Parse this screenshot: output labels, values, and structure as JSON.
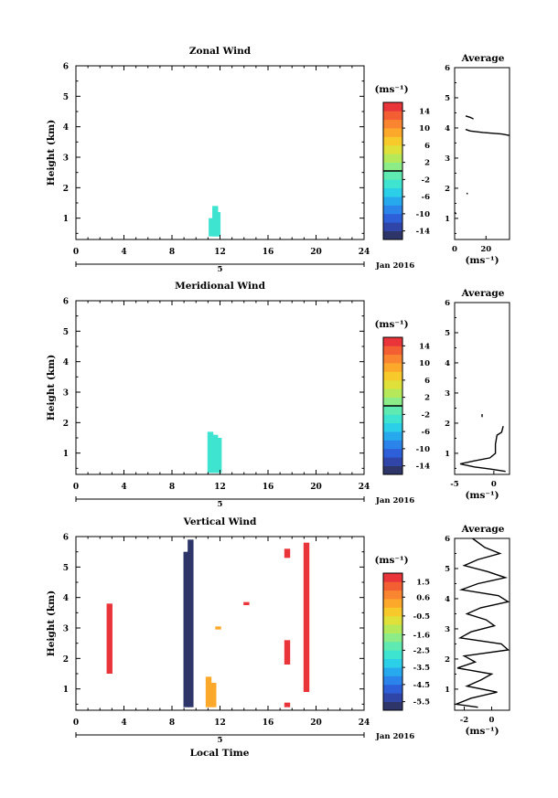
{
  "x_axis": {
    "label": "Local Time",
    "ticks": [
      0,
      4,
      8,
      12,
      16,
      20,
      24
    ],
    "date_day": "5",
    "date_month": "Jan 2016"
  },
  "y_axis": {
    "label": "Height (km)",
    "ticks": [
      1,
      2,
      3,
      4,
      5,
      6
    ]
  },
  "unit": "(ms⁻¹)",
  "panels_text": [
    {
      "title": "Zonal Wind",
      "avg_title": "Average",
      "cb_ticks": [
        "14",
        "10",
        "6",
        "2",
        "-2",
        "-6",
        "-10",
        "-14"
      ],
      "avg_xticks": [
        "0",
        "20"
      ]
    },
    {
      "title": "Meridional Wind",
      "avg_title": "Average",
      "cb_ticks": [
        "14",
        "10",
        "6",
        "2",
        "-2",
        "-6",
        "-10",
        "-14"
      ],
      "avg_xticks": [
        "-5",
        "0"
      ]
    },
    {
      "title": "Vertical Wind",
      "avg_title": "Average",
      "cb_ticks": [
        "1.5",
        "0.6",
        "-0.5",
        "-1.6",
        "-2.5",
        "-3.5",
        "-4.5",
        "-5.5"
      ],
      "avg_xticks": [
        "-2",
        "0"
      ]
    }
  ],
  "chart_data": [
    {
      "type": "heatmap",
      "title": "Zonal Wind",
      "xlabel": "",
      "ylabel": "Height (km)",
      "xlim": [
        0,
        24
      ],
      "ylim": [
        0.3,
        6
      ],
      "colorbar": {
        "label": "(ms⁻¹)",
        "range": [
          -16,
          16
        ],
        "ticks": [
          14,
          10,
          6,
          2,
          -2,
          -6,
          -10,
          -14
        ]
      },
      "cells": [
        {
          "t": 11.3,
          "h_from": 0.4,
          "h_to": 1.0,
          "value": -2.5
        },
        {
          "t": 11.6,
          "h_from": 0.4,
          "h_to": 1.4,
          "value": -2.5
        },
        {
          "t": 11.8,
          "h_from": 0.4,
          "h_to": 1.2,
          "value": -3.0
        }
      ],
      "average_profile": {
        "title": "Average",
        "xlabel": "(ms⁻¹)",
        "xlim": [
          0,
          35
        ],
        "ylim": [
          0.3,
          6
        ],
        "segments": [
          [
            [
              0,
              1.2
            ],
            [
              1,
              1.15
            ]
          ],
          [
            [
              8,
              1.8
            ],
            [
              8,
              1.85
            ]
          ],
          [
            [
              7,
              4.4
            ],
            [
              10,
              4.35
            ],
            [
              12,
              4.3
            ]
          ],
          [
            [
              7,
              3.95
            ],
            [
              10,
              3.9
            ],
            [
              18,
              3.85
            ],
            [
              30,
              3.8
            ],
            [
              35,
              3.75
            ]
          ]
        ]
      }
    },
    {
      "type": "heatmap",
      "title": "Meridional Wind",
      "xlabel": "",
      "ylabel": "Height (km)",
      "xlim": [
        0,
        24
      ],
      "ylim": [
        0.3,
        6
      ],
      "colorbar": {
        "label": "(ms⁻¹)",
        "range": [
          -16,
          16
        ],
        "ticks": [
          14,
          10,
          6,
          2,
          -2,
          -6,
          -10,
          -14
        ]
      },
      "cells": [
        {
          "t": 11.2,
          "h_from": 0.35,
          "h_to": 1.7,
          "value": -2.5
        },
        {
          "t": 11.6,
          "h_from": 0.35,
          "h_to": 1.6,
          "value": -3.0
        },
        {
          "t": 11.9,
          "h_from": 0.35,
          "h_to": 1.5,
          "value": -2.5
        }
      ],
      "average_profile": {
        "title": "Average",
        "xlabel": "(ms⁻¹)",
        "xlim": [
          -5,
          2
        ],
        "ylim": [
          0.3,
          6
        ],
        "segments": [
          [
            [
              -1.5,
              2.3
            ],
            [
              -1.5,
              2.2
            ]
          ],
          [
            [
              1.2,
              1.9
            ],
            [
              1.0,
              1.7
            ],
            [
              0.4,
              1.6
            ],
            [
              0.2,
              1.3
            ],
            [
              0.2,
              1.0
            ],
            [
              -0.5,
              0.85
            ],
            [
              -2.5,
              0.75
            ],
            [
              -4.3,
              0.65
            ],
            [
              -2.5,
              0.55
            ],
            [
              -0.5,
              0.48
            ],
            [
              1.5,
              0.4
            ]
          ]
        ]
      }
    },
    {
      "type": "heatmap",
      "title": "Vertical Wind",
      "xlabel": "Local Time",
      "ylabel": "Height (km)",
      "xlim": [
        0,
        24
      ],
      "ylim": [
        0.3,
        6
      ],
      "colorbar": {
        "label": "(ms⁻¹)",
        "range": [
          -6,
          2
        ],
        "ticks": [
          1.5,
          0.6,
          -0.5,
          -1.6,
          -2.5,
          -3.5,
          -4.5,
          -5.5
        ]
      },
      "cells": [
        {
          "t": 9.2,
          "h_from": 0.4,
          "h_to": 5.5,
          "value": -5.8
        },
        {
          "t": 9.55,
          "h_from": 0.4,
          "h_to": 5.9,
          "value": -5.8
        },
        {
          "t": 11.05,
          "h_from": 0.4,
          "h_to": 1.4,
          "value": 0.2
        },
        {
          "t": 11.45,
          "h_from": 0.4,
          "h_to": 1.2,
          "value": 0.2
        },
        {
          "t": 11.85,
          "h_from": 2.95,
          "h_to": 3.05,
          "value": 0.2
        },
        {
          "t": 14.2,
          "h_from": 3.75,
          "h_to": 3.85,
          "value": 1.8
        },
        {
          "t": 17.6,
          "h_from": 5.3,
          "h_to": 5.6,
          "value": 1.8
        },
        {
          "t": 17.6,
          "h_from": 1.8,
          "h_to": 2.6,
          "value": 1.8
        },
        {
          "t": 17.6,
          "h_from": 0.4,
          "h_to": 0.55,
          "value": 1.8
        },
        {
          "t": 19.2,
          "h_from": 0.9,
          "h_to": 5.8,
          "value": 1.8
        },
        {
          "t": 2.8,
          "h_from": 1.5,
          "h_to": 3.8,
          "value": 1.8
        }
      ],
      "average_profile": {
        "title": "Average",
        "xlabel": "(ms⁻¹)",
        "xlim": [
          -2.7,
          1.3
        ],
        "ylim": [
          0.3,
          6
        ],
        "segments": [
          [
            [
              -1.4,
              6.0
            ],
            [
              -0.5,
              5.7
            ],
            [
              0.6,
              5.5
            ],
            [
              -1.0,
              5.3
            ],
            [
              -2.0,
              5.1
            ],
            [
              -0.3,
              4.9
            ],
            [
              1.0,
              4.7
            ],
            [
              -1.0,
              4.5
            ],
            [
              -2.2,
              4.3
            ],
            [
              0.5,
              4.1
            ],
            [
              1.2,
              3.9
            ],
            [
              -0.8,
              3.7
            ],
            [
              -1.8,
              3.5
            ],
            [
              -0.4,
              3.3
            ],
            [
              0.2,
              3.1
            ],
            [
              -1.5,
              2.9
            ],
            [
              -2.3,
              2.7
            ],
            [
              0.7,
              2.5
            ],
            [
              1.2,
              2.3
            ],
            [
              -2.0,
              2.1
            ],
            [
              -1.2,
              1.9
            ],
            [
              -2.5,
              1.7
            ],
            [
              0.0,
              1.5
            ],
            [
              -0.8,
              1.3
            ],
            [
              -1.8,
              1.1
            ],
            [
              0.4,
              0.9
            ],
            [
              -1.5,
              0.7
            ],
            [
              -2.6,
              0.5
            ],
            [
              -1.0,
              0.4
            ]
          ]
        ]
      }
    }
  ]
}
